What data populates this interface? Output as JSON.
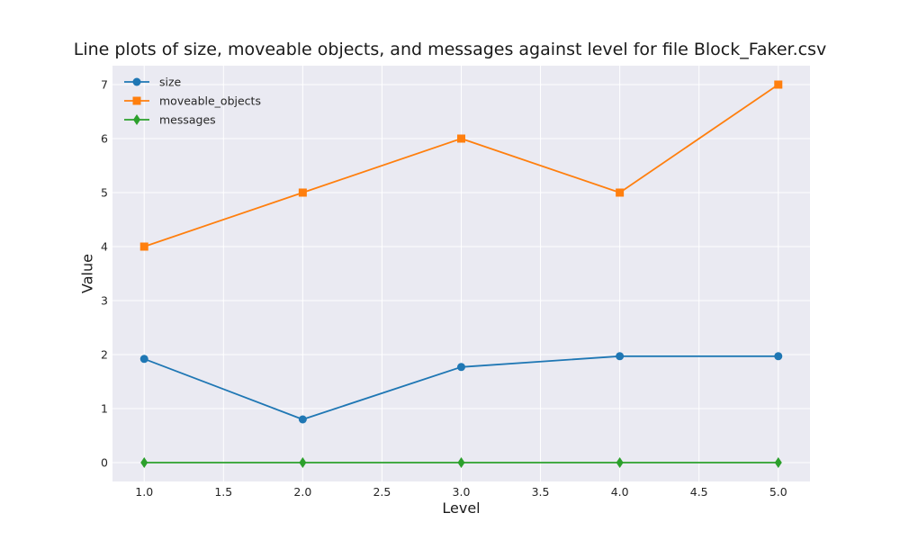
{
  "chart_data": {
    "type": "line",
    "title": "Line plots of size, moveable objects, and messages against level for file Block_Faker.csv",
    "xlabel": "Level",
    "ylabel": "Value",
    "x": [
      1.0,
      2.0,
      3.0,
      4.0,
      5.0
    ],
    "xlim": [
      0.8,
      5.2
    ],
    "ylim": [
      -0.35,
      7.35
    ],
    "xticks": [
      "1.0",
      "1.5",
      "2.0",
      "2.5",
      "3.0",
      "3.5",
      "4.0",
      "4.5",
      "5.0"
    ],
    "xtick_values": [
      1.0,
      1.5,
      2.0,
      2.5,
      3.0,
      3.5,
      4.0,
      4.5,
      5.0
    ],
    "yticks": [
      "0",
      "1",
      "2",
      "3",
      "4",
      "5",
      "6",
      "7"
    ],
    "ytick_values": [
      0,
      1,
      2,
      3,
      4,
      5,
      6,
      7
    ],
    "grid": true,
    "background": "#eaeaf2",
    "legend_position": "top-left",
    "series": [
      {
        "name": "size",
        "values": [
          1.92,
          0.8,
          1.77,
          1.97,
          1.97
        ],
        "color": "#1f77b4",
        "marker": "circle"
      },
      {
        "name": "moveable_objects",
        "values": [
          4,
          5,
          6,
          5,
          7
        ],
        "color": "#ff7f0e",
        "marker": "square"
      },
      {
        "name": "messages",
        "values": [
          0,
          0,
          0,
          0,
          0
        ],
        "color": "#2ca02c",
        "marker": "diamond"
      }
    ]
  }
}
